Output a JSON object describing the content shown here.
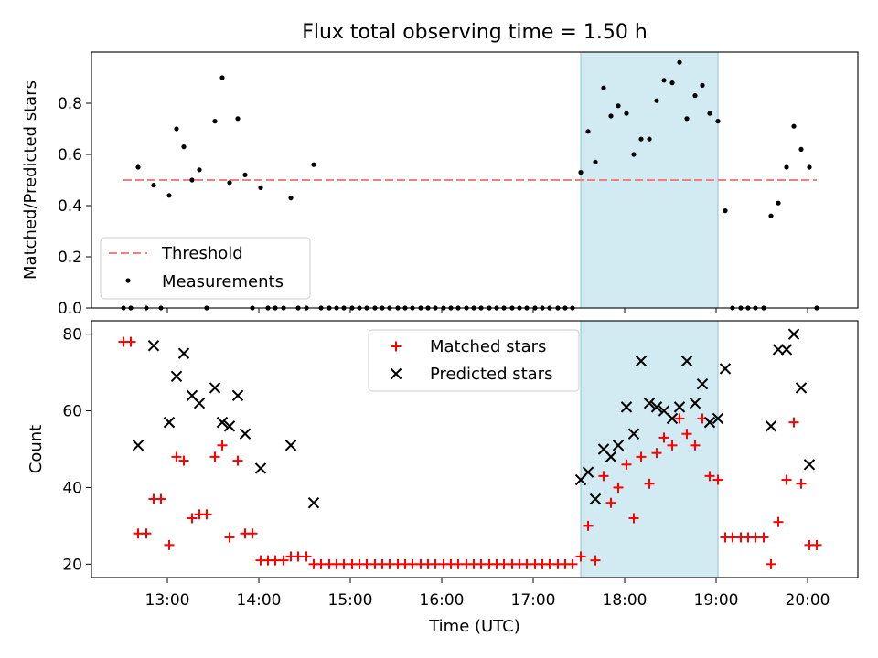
{
  "title": "Flux total observing time = 1.50 h",
  "colors": {
    "threshold": "#f08080",
    "measurement": "#000000",
    "matched": "#ff0000",
    "predicted": "#000000",
    "highlight": "#add8e6"
  },
  "chart_data": [
    {
      "type": "scatter",
      "ylabel": "Matched/Predicted stars",
      "xlim": [
        12.17,
        20.55
      ],
      "ylim": [
        0.0,
        1.0
      ],
      "yticks": [
        "0.0",
        "0.2",
        "0.4",
        "0.6",
        "0.8"
      ],
      "highlight_span": [
        17.52,
        19.02
      ],
      "threshold": 0.5,
      "legend": {
        "threshold_label": "Threshold",
        "measurements_label": "Measurements",
        "location": "lower-left"
      },
      "series": [
        {
          "name": "Measurements",
          "x": [
            12.52,
            12.6,
            12.68,
            12.77,
            12.85,
            12.93,
            13.02,
            13.1,
            13.18,
            13.27,
            13.35,
            13.43,
            13.52,
            13.6,
            13.68,
            13.77,
            13.85,
            13.93,
            14.02,
            14.1,
            14.18,
            14.27,
            14.35,
            14.43,
            14.52,
            14.6,
            14.68,
            14.77,
            14.85,
            14.93,
            15.02,
            15.1,
            15.18,
            15.27,
            15.35,
            15.43,
            15.52,
            15.6,
            15.68,
            15.77,
            15.85,
            15.93,
            16.02,
            16.1,
            16.18,
            16.27,
            16.35,
            16.43,
            16.52,
            16.6,
            16.68,
            16.77,
            16.85,
            16.93,
            17.02,
            17.1,
            17.18,
            17.27,
            17.35,
            17.43,
            17.52,
            17.6,
            17.68,
            17.77,
            17.85,
            17.93,
            18.02,
            18.1,
            18.18,
            18.27,
            18.35,
            18.43,
            18.52,
            18.6,
            18.68,
            18.77,
            18.85,
            18.93,
            19.02,
            19.1,
            19.18,
            19.27,
            19.35,
            19.43,
            19.52,
            19.6,
            19.68,
            19.77,
            19.85,
            19.93,
            20.02,
            20.1
          ],
          "y": [
            0,
            0,
            0.55,
            0,
            0.48,
            0,
            0.44,
            0.7,
            0.63,
            0.5,
            0.54,
            0,
            0.73,
            0.9,
            0.49,
            0.74,
            0.52,
            0,
            0.47,
            0,
            0,
            0,
            0.43,
            0,
            0,
            0.56,
            0,
            0,
            0,
            0,
            0,
            0,
            0,
            0,
            0,
            0,
            0,
            0,
            0,
            0,
            0,
            0,
            0,
            0,
            0,
            0,
            0,
            0,
            0,
            0,
            0,
            0,
            0,
            0,
            0,
            0,
            0,
            0,
            0,
            0,
            0.53,
            0.69,
            0.57,
            0.86,
            0.75,
            0.79,
            0.76,
            0.6,
            0.66,
            0.66,
            0.81,
            0.89,
            0.88,
            0.96,
            0.74,
            0.83,
            0.87,
            0.76,
            0.73,
            0.38,
            0,
            0,
            0,
            0,
            0,
            0.36,
            0.41,
            0.55,
            0.71,
            0.62,
            0.55,
            0
          ]
        }
      ]
    },
    {
      "type": "scatter",
      "xlabel": "Time (UTC)",
      "ylabel": "Count",
      "xlim": [
        12.17,
        20.55
      ],
      "ylim": [
        16.5,
        83.5
      ],
      "yticks": [
        "20",
        "40",
        "60",
        "80"
      ],
      "xtick_values": [
        13,
        14,
        15,
        16,
        17,
        18,
        19,
        20
      ],
      "xticks": [
        "13:00",
        "14:00",
        "15:00",
        "16:00",
        "17:00",
        "18:00",
        "19:00",
        "20:00"
      ],
      "highlight_span": [
        17.52,
        19.02
      ],
      "legend": {
        "matched_label": "Matched stars",
        "predicted_label": "Predicted stars",
        "location": "upper-center"
      },
      "series": [
        {
          "name": "Matched stars",
          "x": [
            12.52,
            12.6,
            12.68,
            12.77,
            12.85,
            12.93,
            13.02,
            13.1,
            13.18,
            13.27,
            13.35,
            13.43,
            13.52,
            13.6,
            13.68,
            13.77,
            13.85,
            13.93,
            14.02,
            14.1,
            14.18,
            14.27,
            14.35,
            14.43,
            14.52,
            14.6,
            14.68,
            14.77,
            14.85,
            14.93,
            15.02,
            15.1,
            15.18,
            15.27,
            15.35,
            15.43,
            15.52,
            15.6,
            15.68,
            15.77,
            15.85,
            15.93,
            16.02,
            16.1,
            16.18,
            16.27,
            16.35,
            16.43,
            16.52,
            16.6,
            16.68,
            16.77,
            16.85,
            16.93,
            17.02,
            17.1,
            17.18,
            17.27,
            17.35,
            17.43,
            17.52,
            17.6,
            17.68,
            17.77,
            17.85,
            17.93,
            18.02,
            18.1,
            18.18,
            18.27,
            18.35,
            18.43,
            18.52,
            18.6,
            18.68,
            18.77,
            18.85,
            18.93,
            19.02,
            19.1,
            19.18,
            19.27,
            19.35,
            19.43,
            19.52,
            19.6,
            19.68,
            19.77,
            19.85,
            19.93,
            20.02,
            20.1
          ],
          "y": [
            78,
            78,
            28,
            28,
            37,
            37,
            25,
            48,
            47,
            32,
            33,
            33,
            48,
            51,
            27,
            47,
            28,
            28,
            21,
            21,
            21,
            21,
            22,
            22,
            22,
            20,
            20,
            20,
            20,
            20,
            20,
            20,
            20,
            20,
            20,
            20,
            20,
            20,
            20,
            20,
            20,
            20,
            20,
            20,
            20,
            20,
            20,
            20,
            20,
            20,
            20,
            20,
            20,
            20,
            20,
            20,
            20,
            20,
            20,
            20,
            22,
            30,
            21,
            43,
            36,
            40,
            46,
            32,
            48,
            41,
            49,
            53,
            51,
            58,
            54,
            51,
            58,
            43,
            42,
            27,
            27,
            27,
            27,
            27,
            27,
            20,
            31,
            42,
            57,
            41,
            25,
            25
          ]
        },
        {
          "name": "Predicted stars",
          "x": [
            12.68,
            12.85,
            13.02,
            13.1,
            13.18,
            13.27,
            13.35,
            13.52,
            13.6,
            13.68,
            13.77,
            13.85,
            14.02,
            14.35,
            14.6,
            17.52,
            17.6,
            17.68,
            17.77,
            17.85,
            17.93,
            18.02,
            18.1,
            18.18,
            18.27,
            18.35,
            18.43,
            18.52,
            18.6,
            18.68,
            18.77,
            18.85,
            18.93,
            19.02,
            19.1,
            19.6,
            19.68,
            19.77,
            19.85,
            19.93,
            20.02
          ],
          "y": [
            51,
            77,
            57,
            69,
            75,
            64,
            62,
            66,
            57,
            56,
            64,
            54,
            45,
            51,
            36,
            42,
            44,
            37,
            50,
            48,
            51,
            61,
            54,
            73,
            62,
            61,
            60,
            58,
            61,
            73,
            62,
            67,
            57,
            58,
            71,
            56,
            76,
            76,
            80,
            66,
            46
          ]
        }
      ]
    }
  ]
}
